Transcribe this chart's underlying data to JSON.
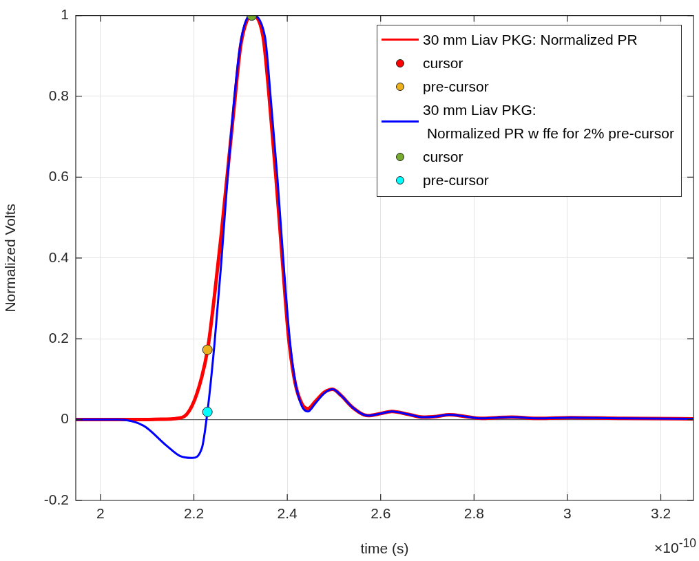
{
  "chart_data": {
    "type": "line",
    "xlabel": "time (s)",
    "ylabel": "Normalized Volts",
    "xlim": [
      1.947,
      3.27
    ],
    "xticks": [
      2,
      2.2,
      2.4,
      2.6,
      2.8,
      3,
      3.2
    ],
    "ylim": [
      -0.2,
      1
    ],
    "yticks": [
      -0.2,
      0,
      0.2,
      0.4,
      0.6,
      0.8,
      1
    ],
    "grid": true,
    "legend": "top right",
    "marker": "circle",
    "ref_lines": [
      {
        "axis": "y",
        "value": 0,
        "color": "#606060"
      }
    ],
    "annotations": [
      "×10$^{-10}$"
    ],
    "series": [
      {
        "name": "30 mm Liav PKG: Normalized PR",
        "marker": "none",
        "color": "#ff0000",
        "x": [
          1.947,
          2.08,
          2.13,
          2.174,
          2.196,
          2.217,
          2.23,
          2.244,
          2.258,
          2.272,
          2.286,
          2.3,
          2.314,
          2.324,
          2.348,
          2.362,
          2.376,
          2.39,
          2.403,
          2.417,
          2.431,
          2.444,
          2.46,
          2.48,
          2.497,
          2.515,
          2.54,
          2.573,
          2.6,
          2.624,
          2.66,
          2.69,
          2.72,
          2.747,
          2.78,
          2.816,
          2.85,
          2.881,
          2.94,
          3.007,
          3.12,
          3.27
        ],
        "values": [
          0,
          0,
          0.001,
          0.005,
          0.034,
          0.106,
          0.178,
          0.306,
          0.451,
          0.611,
          0.772,
          0.924,
          0.989,
          1,
          0.949,
          0.789,
          0.596,
          0.387,
          0.202,
          0.09,
          0.04,
          0.027,
          0.045,
          0.068,
          0.075,
          0.06,
          0.03,
          0.01,
          0.015,
          0.02,
          0.013,
          0.006,
          0.008,
          0.012,
          0.008,
          0.003,
          0.005,
          0.006,
          0.003,
          0.005,
          0.003,
          0.002
        ]
      },
      {
        "name": "cursor",
        "type": "scatter",
        "color": "#ff0000",
        "x": [
          null
        ],
        "values": [
          null
        ]
      },
      {
        "name": "pre-cursor",
        "type": "scatter",
        "color": "#edb120",
        "x": [
          2.229
        ],
        "values": [
          0.173
        ]
      },
      {
        "name": "30 mm Liav PKG:\n Normalized PR w ffe for 2% pre-cursor",
        "marker": "none",
        "color": "#0000ff",
        "x": [
          1.947,
          2.037,
          2.092,
          2.14,
          2.17,
          2.196,
          2.217,
          2.229,
          2.244,
          2.258,
          2.272,
          2.286,
          2.3,
          2.314,
          2.324,
          2.352,
          2.365,
          2.379,
          2.392,
          2.405,
          2.417,
          2.431,
          2.444,
          2.46,
          2.48,
          2.497,
          2.515,
          2.54,
          2.573,
          2.6,
          2.624,
          2.66,
          2.69,
          2.72,
          2.747,
          2.78,
          2.816,
          2.85,
          2.881,
          2.94,
          3.007,
          3.12,
          3.27
        ],
        "values": [
          0,
          0,
          -0.015,
          -0.063,
          -0.09,
          -0.095,
          -0.071,
          0.019,
          0.186,
          0.379,
          0.596,
          0.789,
          0.932,
          0.993,
          1,
          0.949,
          0.789,
          0.596,
          0.387,
          0.202,
          0.094,
          0.034,
          0.02,
          0.04,
          0.066,
          0.075,
          0.06,
          0.03,
          0.01,
          0.015,
          0.02,
          0.013,
          0.006,
          0.008,
          0.012,
          0.008,
          0.003,
          0.005,
          0.006,
          0.003,
          0.005,
          0.003,
          0.002
        ]
      },
      {
        "name": "cursor",
        "type": "scatter",
        "color": "#77ac30",
        "x": [
          2.324
        ],
        "values": [
          1
        ]
      },
      {
        "name": "pre-cursor",
        "type": "scatter",
        "color": "#00ffff",
        "x": [
          2.229
        ],
        "values": [
          0.019
        ]
      }
    ]
  }
}
